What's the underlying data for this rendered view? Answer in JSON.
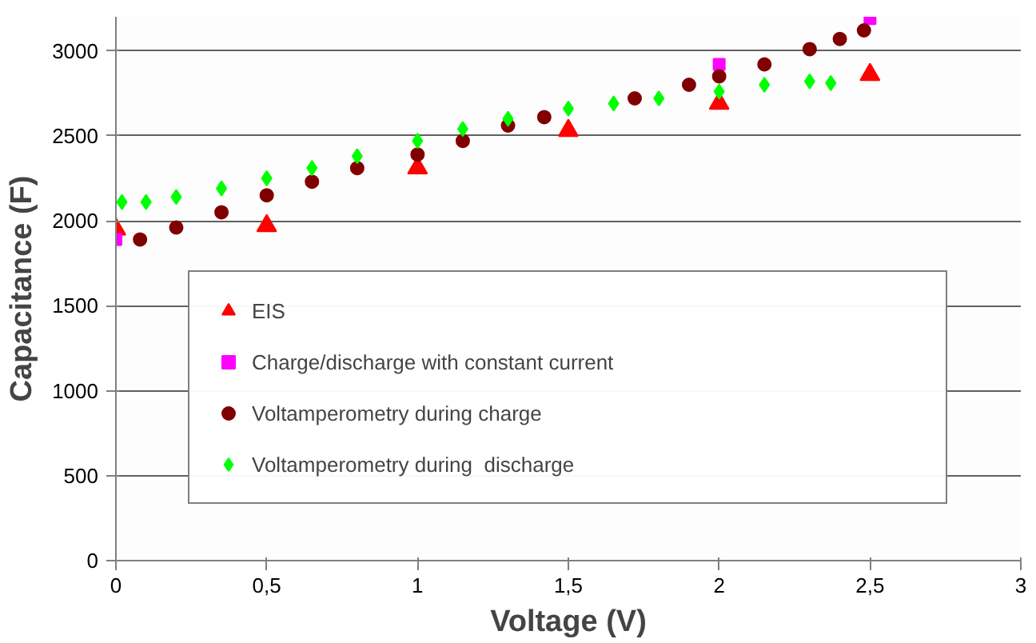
{
  "chart_data": {
    "type": "scatter",
    "xlabel": "Voltage (V)",
    "ylabel": "Capacitance (F)",
    "xlim": [
      0,
      3
    ],
    "xticks": [
      0,
      {
        "value": 0.5,
        "label": "0,5"
      },
      1,
      {
        "value": 1.5,
        "label": "1,5"
      },
      2,
      {
        "value": 2.5,
        "label": "2,5"
      },
      3
    ],
    "ylim": [
      0,
      3200
    ],
    "yticks": [
      0,
      500,
      1000,
      1500,
      2000,
      2500,
      3000
    ],
    "grid": "y",
    "legend": "bottom",
    "series": [
      {
        "name": "EIS",
        "color": "#ff0000",
        "marker": "triangle",
        "x": [
          0,
          0.5,
          1,
          1.5,
          2,
          2.5
        ],
        "values": [
          1950,
          1970,
          2310,
          2530,
          2690,
          2860
        ]
      },
      {
        "name": "Charge/discharge with constant current",
        "color": "#ff00ff",
        "marker": "square",
        "x": [
          0,
          2,
          2.5
        ],
        "values": [
          1890,
          2920,
          3190
        ]
      },
      {
        "name": "Voltamperometry during charge",
        "color": "#800000",
        "marker": "circle",
        "x": [
          0.08,
          0.2,
          0.35,
          0.5,
          0.65,
          0.8,
          1,
          1.15,
          1.3,
          1.42,
          1.72,
          1.9,
          2,
          2.15,
          2.3,
          2.4,
          2.48
        ],
        "values": [
          1890,
          1960,
          2050,
          2150,
          2230,
          2310,
          2390,
          2470,
          2560,
          2610,
          2720,
          2800,
          2850,
          2920,
          3010,
          3070,
          3120
        ]
      },
      {
        "name": "Voltamperometry during  discharge",
        "color": "#00ff00",
        "marker": "diamond",
        "x": [
          0.02,
          0.1,
          0.2,
          0.35,
          0.5,
          0.65,
          0.8,
          1,
          1.15,
          1.3,
          1.5,
          1.65,
          1.8,
          2,
          2.15,
          2.3,
          2.37
        ],
        "values": [
          2110,
          2110,
          2140,
          2190,
          2250,
          2310,
          2380,
          2470,
          2540,
          2600,
          2660,
          2690,
          2720,
          2760,
          2800,
          2820,
          2810
        ]
      }
    ]
  }
}
